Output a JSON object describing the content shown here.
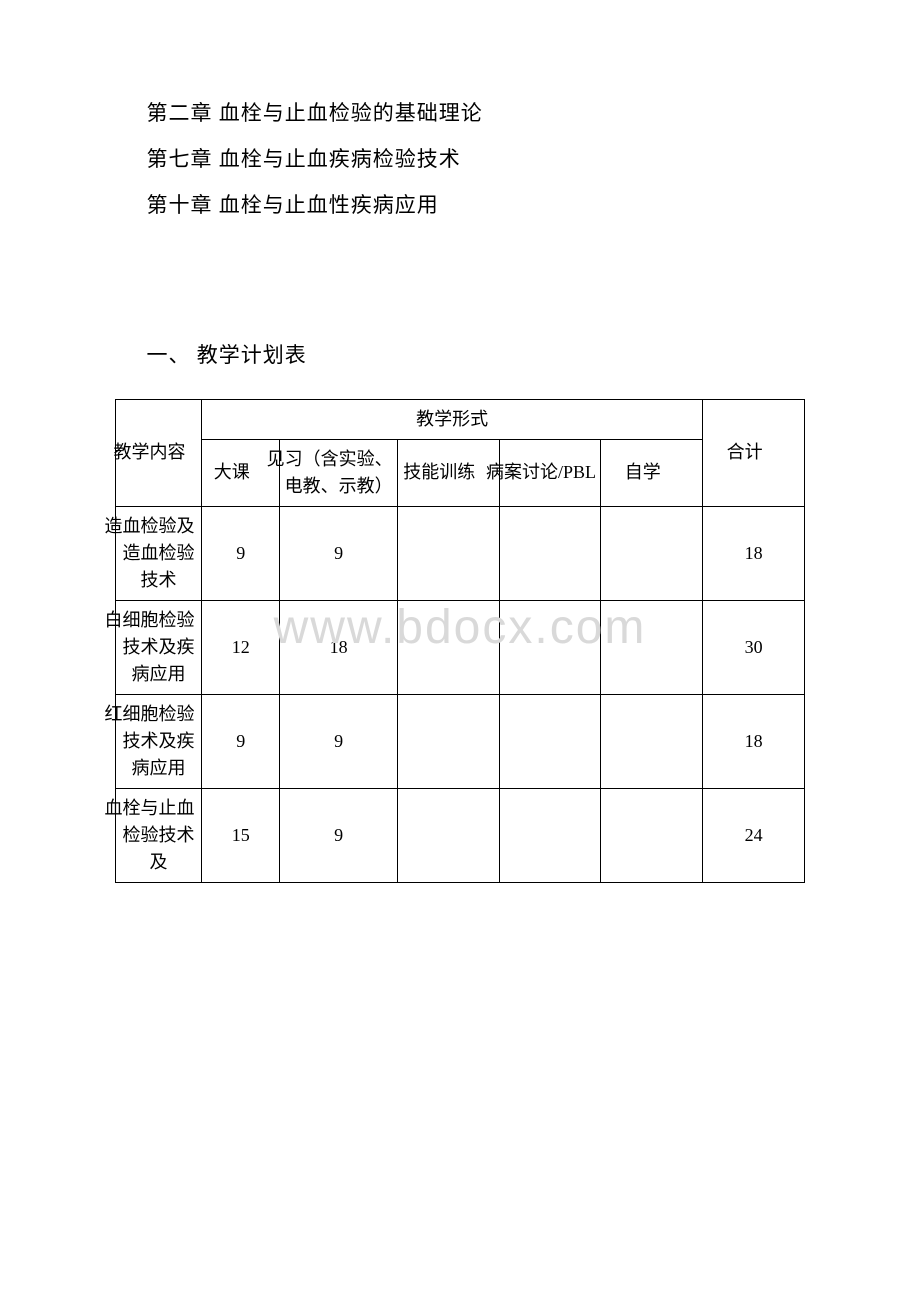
{
  "chapters": [
    "第二章 血栓与止血检验的基础理论",
    "第七章 血栓与止血疾病检验技术",
    "第十章 血栓与止血性疾病应用"
  ],
  "sectionHeading": "一、 教学计划表",
  "watermark": "www.bdocx.com",
  "table": {
    "colWidths": [
      "11%",
      "10%",
      "15%",
      "13%",
      "13%",
      "13%",
      "13%"
    ],
    "borderColor": "#000000",
    "fontSize": 18,
    "headerRow1": {
      "col0": "教学内容",
      "col1span": "教学形式",
      "col6": "合计"
    },
    "headerRow2": {
      "col1": "大课",
      "col2": "见习（含实验、电教、示教）",
      "col3": "技能训练",
      "col4": "病案讨论/PBL",
      "col5": "自学"
    },
    "rows": [
      {
        "label": "造血检验及造血检验技术",
        "values": [
          "9",
          "9",
          "",
          "",
          "",
          "18"
        ]
      },
      {
        "label": "白细胞检验技术及疾病应用",
        "values": [
          "12",
          "18",
          "",
          "",
          "",
          "30"
        ]
      },
      {
        "label": "红细胞检验技术及疾病应用",
        "values": [
          "9",
          "9",
          "",
          "",
          "",
          "18"
        ]
      },
      {
        "label": "血栓与止血检验技术及",
        "values": [
          "15",
          "9",
          "",
          "",
          "",
          "24"
        ]
      }
    ]
  }
}
